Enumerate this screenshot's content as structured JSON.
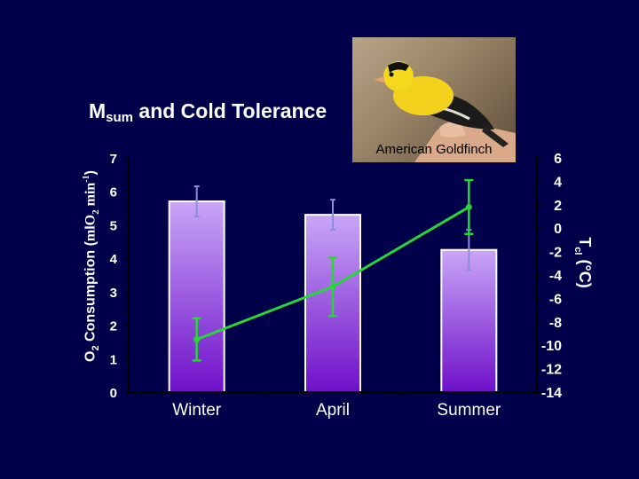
{
  "chart_data": {
    "type": "bar",
    "title": {
      "main": "M",
      "sub": "sum",
      "rest": " and Cold Tolerance"
    },
    "categories": [
      "Winter",
      "April",
      "Summer"
    ],
    "left_axis": {
      "label": {
        "p1": "O",
        "p2": "2",
        "p3": " Consumption (",
        "p4": "mlO",
        "p5": "2",
        "p6": " min",
        "p7": "-1",
        "p8": ")"
      },
      "ylim": [
        0,
        7
      ],
      "ticks": [
        "0",
        "1",
        "2",
        "3",
        "4",
        "5",
        "6",
        "7"
      ]
    },
    "right_axis": {
      "label": {
        "p1": "T",
        "p2": "cl",
        "p3": " (°C)"
      },
      "ylim": [
        -14,
        6
      ],
      "ticks": [
        "-14",
        "-12",
        "-10",
        "-8",
        "-6",
        "-4",
        "-2",
        "0",
        "2",
        "4",
        "6"
      ]
    },
    "series": [
      {
        "type": "bar",
        "axis": "left",
        "values": [
          5.7,
          5.3,
          4.25
        ],
        "error": [
          0.45,
          0.45,
          0.6
        ]
      },
      {
        "type": "line",
        "axis": "right",
        "values": [
          -9.5,
          -5.0,
          1.8
        ],
        "error": [
          1.8,
          2.5,
          2.3
        ]
      }
    ],
    "grid": false,
    "legend": "none",
    "colors": {
      "background": "#00004a",
      "bar_top": "#c9a6f7",
      "bar_bottom": "#6f10c9",
      "bar_border": "#ffffff",
      "bar_error": "#8c8cdc",
      "line": "#26d836",
      "axis": "#000000",
      "text": "#ffffff"
    }
  },
  "photo": {
    "caption": "American Goldfinch",
    "subject": "goldfinch-in-hand"
  }
}
